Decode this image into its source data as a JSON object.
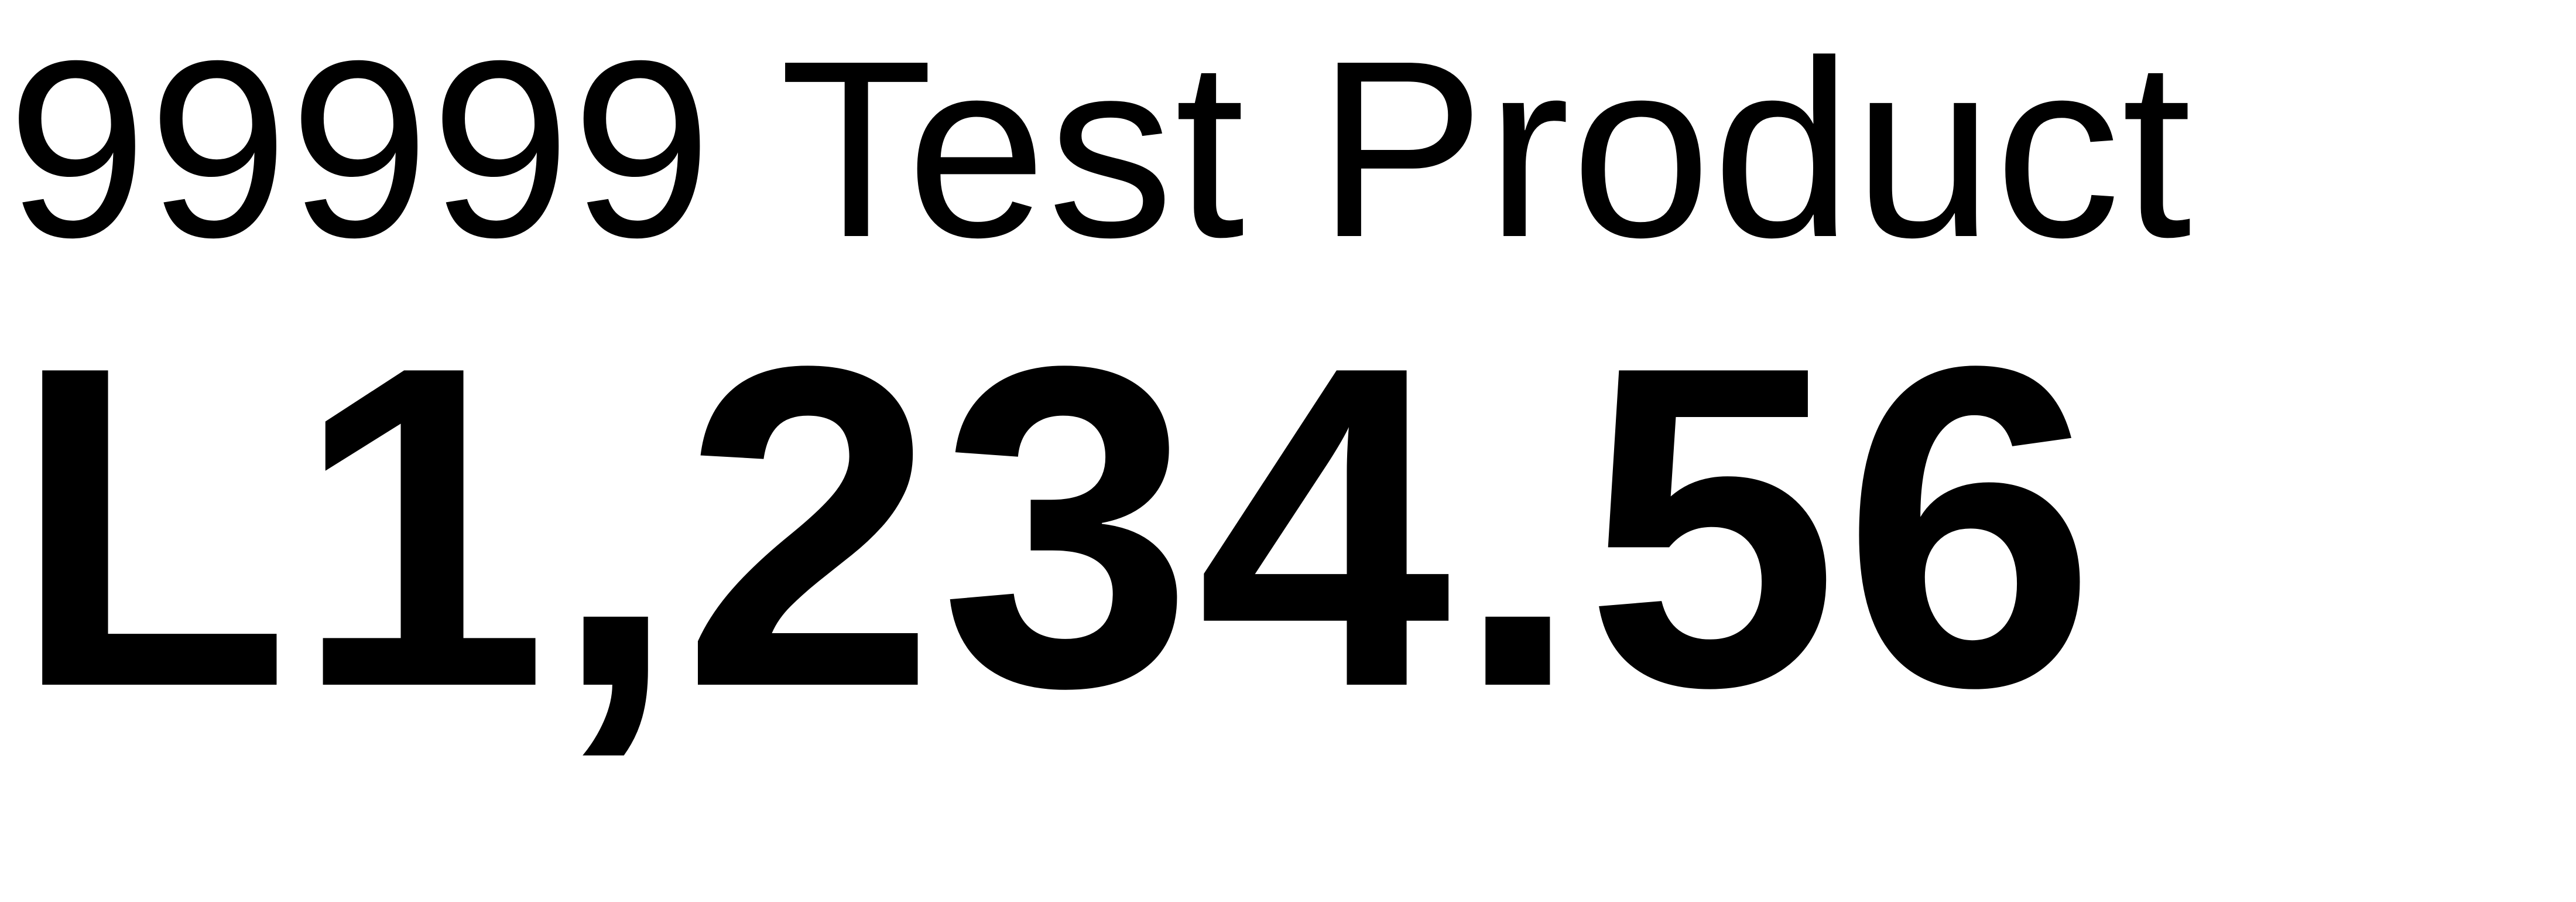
{
  "product": {
    "name": "99999 Test Product",
    "price": "L1,234.56"
  }
}
